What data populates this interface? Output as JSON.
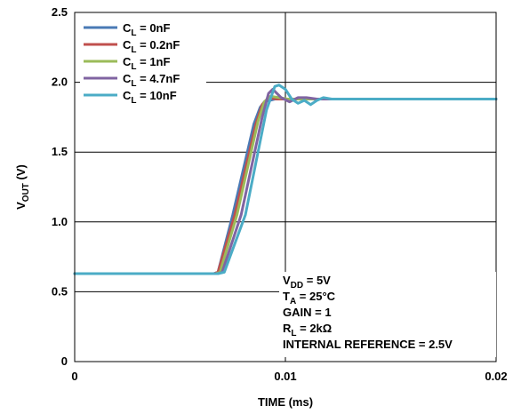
{
  "chart_data": {
    "type": "line",
    "xlabel": "TIME (ms)",
    "ylabel": {
      "base": "V",
      "sub": "OUT",
      "suffix": " (V)"
    },
    "xlim": [
      0,
      0.02
    ],
    "ylim": [
      0,
      2.5
    ],
    "x_ticks": [
      {
        "value": 0,
        "label": "0"
      },
      {
        "value": 0.01,
        "label": "0.01"
      },
      {
        "value": 0.02,
        "label": "0.02"
      }
    ],
    "y_ticks": [
      {
        "value": 0,
        "label": "0"
      },
      {
        "value": 0.5,
        "label": "0.5"
      },
      {
        "value": 1.0,
        "label": "1.0"
      },
      {
        "value": 1.5,
        "label": "1.5"
      },
      {
        "value": 2.0,
        "label": "2.0"
      },
      {
        "value": 2.5,
        "label": "2.5"
      }
    ],
    "grid": true,
    "legend_position": "top-left",
    "series": [
      {
        "name": "C_L = 0nF",
        "label": {
          "base": "C",
          "sub": "L",
          "suffix": " = 0nF"
        },
        "color": "#4a7ab5",
        "x": [
          0,
          0.0066,
          0.0068,
          0.0075,
          0.0085,
          0.0088,
          0.009,
          0.0095,
          0.01,
          0.0105,
          0.011,
          0.02
        ],
        "y": [
          0.63,
          0.63,
          0.64,
          1.05,
          1.7,
          1.82,
          1.86,
          1.88,
          1.88,
          1.88,
          1.88,
          1.88
        ]
      },
      {
        "name": "C_L = 0.2nF",
        "label": {
          "base": "C",
          "sub": "L",
          "suffix": " = 0.2nF"
        },
        "color": "#c0504d",
        "x": [
          0,
          0.0066,
          0.0068,
          0.0076,
          0.0086,
          0.0089,
          0.0092,
          0.0096,
          0.01,
          0.0105,
          0.011,
          0.02
        ],
        "y": [
          0.63,
          0.63,
          0.64,
          1.05,
          1.7,
          1.84,
          1.89,
          1.88,
          1.88,
          1.88,
          1.88,
          1.88
        ]
      },
      {
        "name": "C_L = 1nF",
        "label": {
          "base": "C",
          "sub": "L",
          "suffix": " = 1nF"
        },
        "color": "#9bbb59",
        "x": [
          0,
          0.0067,
          0.0069,
          0.0077,
          0.0087,
          0.009,
          0.0093,
          0.0097,
          0.0101,
          0.0106,
          0.011,
          0.02
        ],
        "y": [
          0.63,
          0.63,
          0.64,
          1.05,
          1.72,
          1.86,
          1.9,
          1.89,
          1.88,
          1.88,
          1.88,
          1.88
        ]
      },
      {
        "name": "C_L = 4.7nF",
        "label": {
          "base": "C",
          "sub": "L",
          "suffix": " = 4.7nF"
        },
        "color": "#8064a2",
        "x": [
          0,
          0.0068,
          0.007,
          0.0079,
          0.0089,
          0.0092,
          0.0094,
          0.0098,
          0.0102,
          0.0106,
          0.011,
          0.0115,
          0.012,
          0.02
        ],
        "y": [
          0.63,
          0.63,
          0.64,
          1.05,
          1.75,
          1.92,
          1.95,
          1.89,
          1.86,
          1.89,
          1.89,
          1.88,
          1.88,
          1.88
        ]
      },
      {
        "name": "C_L = 10nF",
        "label": {
          "base": "C",
          "sub": "L",
          "suffix": " = 10nF"
        },
        "color": "#4bacc6",
        "x": [
          0,
          0.0068,
          0.0071,
          0.0081,
          0.0091,
          0.0095,
          0.0097,
          0.01,
          0.0103,
          0.0106,
          0.0109,
          0.0112,
          0.0115,
          0.0118,
          0.0122,
          0.0128,
          0.02
        ],
        "y": [
          0.63,
          0.63,
          0.64,
          1.05,
          1.8,
          1.97,
          1.98,
          1.95,
          1.88,
          1.85,
          1.87,
          1.84,
          1.87,
          1.89,
          1.88,
          1.88,
          1.88
        ]
      }
    ],
    "annotations": [
      {
        "base": "V",
        "sub": "DD",
        "suffix": " = 5V"
      },
      {
        "base": "T",
        "sub": "A",
        "suffix": " = 25°C"
      },
      {
        "base": "GAIN = 1",
        "sub": "",
        "suffix": ""
      },
      {
        "base": "R",
        "sub": "L",
        "suffix": " = 2kΩ"
      },
      {
        "base": "INTERNAL REFERENCE = 2.5V",
        "sub": "",
        "suffix": ""
      }
    ]
  }
}
